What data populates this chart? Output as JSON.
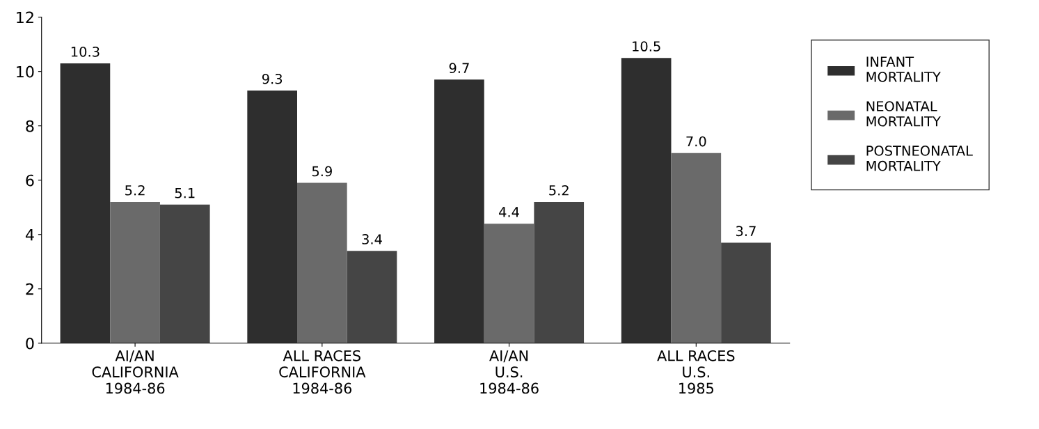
{
  "chart_data": {
    "type": "bar",
    "categories": [
      "AI/AN\nCALIFORNIA\n1984-86",
      "ALL RACES\nCALIFORNIA\n1984-86",
      "AI/AN\nU.S.\n1984-86",
      "ALL RACES\nU.S.\n1985"
    ],
    "series": [
      {
        "name": "INFANT\nMORTALITY",
        "color": "#2e2e2e",
        "values": [
          10.3,
          9.3,
          9.7,
          10.5
        ]
      },
      {
        "name": "NEONATAL\nMORTALITY",
        "color": "#6a6a6a",
        "values": [
          5.2,
          5.9,
          4.4,
          7.0
        ]
      },
      {
        "name": "POSTNEONATAL\nMORTALITY",
        "color": "#454545",
        "values": [
          5.1,
          3.4,
          5.2,
          3.7
        ]
      }
    ],
    "value_labels": [
      [
        "10.3",
        "9.3",
        "9.7",
        "10.5"
      ],
      [
        "5.2",
        "5.9",
        "4.4",
        "7.0"
      ],
      [
        "5.1",
        "3.4",
        "5.2",
        "3.7"
      ]
    ],
    "ylim": [
      0,
      12
    ],
    "yticks": [
      0,
      2,
      4,
      6,
      8,
      10,
      12
    ],
    "grid": false,
    "legend": "right"
  }
}
